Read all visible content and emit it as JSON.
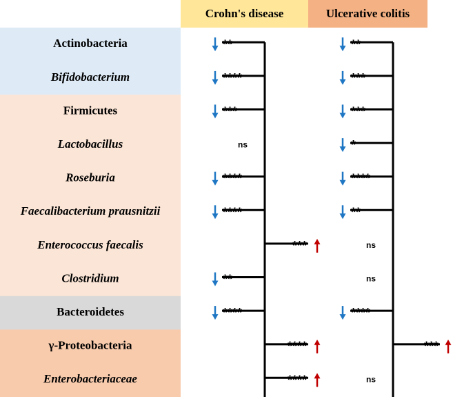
{
  "header": {
    "columns": [
      {
        "label": "Crohn's disease",
        "color": "#ffe699"
      },
      {
        "label": "Ulcerative colitis",
        "color": "#f4b183"
      }
    ]
  },
  "rows": [
    {
      "label": "Actinobacteria",
      "italic": false,
      "color": "#deebf7",
      "crohns": {
        "text": "**",
        "change": "down"
      },
      "uc": {
        "text": "**",
        "change": "down"
      }
    },
    {
      "label": "Bifidobacterium",
      "italic": true,
      "color": "#deebf7",
      "crohns": {
        "text": "****",
        "change": "down"
      },
      "uc": {
        "text": "***",
        "change": "down"
      }
    },
    {
      "label": "Firmicutes",
      "italic": false,
      "color": "#fbe5d6",
      "crohns": {
        "text": "***",
        "change": "down"
      },
      "uc": {
        "text": "***",
        "change": "down"
      }
    },
    {
      "label": "Lactobacillus",
      "italic": true,
      "color": "#fbe5d6",
      "crohns": {
        "text": "ns",
        "change": null
      },
      "uc": {
        "text": "*",
        "change": "down"
      }
    },
    {
      "label": "Roseburia",
      "italic": true,
      "color": "#fbe5d6",
      "crohns": {
        "text": "****",
        "change": "down"
      },
      "uc": {
        "text": "****",
        "change": "down"
      }
    },
    {
      "label": "Faecalibacterium prausnitzii",
      "italic": true,
      "color": "#fbe5d6",
      "crohns": {
        "text": "****",
        "change": "down"
      },
      "uc": {
        "text": "**",
        "change": "down"
      }
    },
    {
      "label": "Enterococcus faecalis",
      "italic": true,
      "color": "#fbe5d6",
      "crohns": {
        "text": "***",
        "change": "up"
      },
      "uc": {
        "text": "ns",
        "change": null
      }
    },
    {
      "label": "Clostridium",
      "italic": true,
      "color": "#fbe5d6",
      "crohns": {
        "text": "**",
        "change": "down"
      },
      "uc": {
        "text": "ns",
        "change": null
      }
    },
    {
      "label": "Bacteroidetes",
      "italic": false,
      "color": "#d9d9d9",
      "crohns": {
        "text": "****",
        "change": "down"
      },
      "uc": {
        "text": "****",
        "change": "down"
      }
    },
    {
      "label": "γ-Proteobacteria",
      "italic": false,
      "color": "#f8cbad",
      "crohns": {
        "text": "****",
        "change": "up"
      },
      "uc": {
        "text": "***",
        "change": "up"
      }
    },
    {
      "label": "Enterobacteriaceae",
      "italic": true,
      "color": "#f8cbad",
      "crohns": {
        "text": "****",
        "change": "up"
      },
      "uc": {
        "text": "ns",
        "change": null
      }
    }
  ]
}
